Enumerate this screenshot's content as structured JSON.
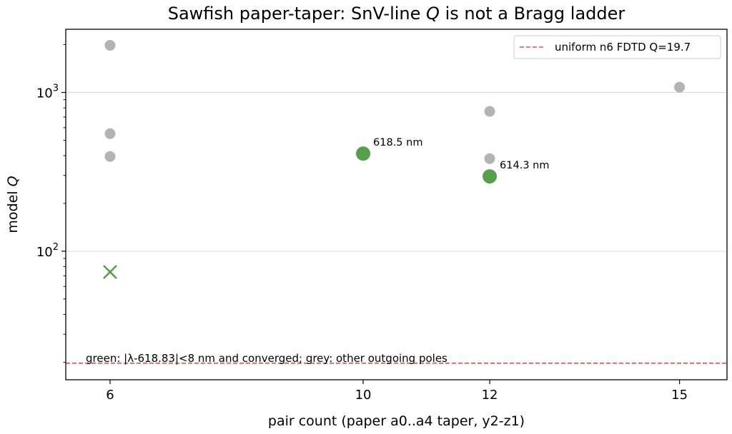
{
  "chart_data": {
    "type": "scatter",
    "title_parts": [
      "Sawfish paper-taper: SnV-line ",
      "Q",
      " is not a Bragg ladder"
    ],
    "xlabel": "pair count (paper a0..a4 taper, y2-z1)",
    "ylabel_parts": [
      "model ",
      "Q"
    ],
    "xlim": [
      5.3,
      15.75
    ],
    "ylim": [
      15.5,
      2500
    ],
    "yscale": "log",
    "grid": "horizontal major",
    "x_ticks": [
      {
        "value": 6,
        "label": "6"
      },
      {
        "value": 10,
        "label": "10"
      },
      {
        "value": 12,
        "label": "12"
      },
      {
        "value": 15,
        "label": "15"
      }
    ],
    "y_ticks": [
      {
        "value": 100,
        "base": "10",
        "exp": "2"
      },
      {
        "value": 1000,
        "base": "10",
        "exp": "3"
      }
    ],
    "series": [
      {
        "color": "#b3b3b3",
        "marker": "circle",
        "points": [
          {
            "x": 6,
            "y": 1980
          },
          {
            "x": 6,
            "y": 550
          },
          {
            "x": 6,
            "y": 395
          },
          {
            "x": 12,
            "y": 760
          },
          {
            "x": 12,
            "y": 383
          },
          {
            "x": 15,
            "y": 1080
          }
        ]
      },
      {
        "color": "#55a04b",
        "marker": "circle",
        "points": [
          {
            "x": 10,
            "y": 412,
            "label": "618.5 nm"
          },
          {
            "x": 12,
            "y": 296,
            "label": "614.3 nm"
          }
        ]
      },
      {
        "color": "#55a04b",
        "marker": "x",
        "points": [
          {
            "x": 6,
            "y": 74
          }
        ]
      }
    ],
    "reference_line": {
      "y": 19.7,
      "color": "#e05050",
      "style": "dashed",
      "legend": "uniform n6 FDTD Q=19.7"
    },
    "legend_position": "top-right",
    "note": "green: |λ-618.83|<8 nm and converged; grey: other outgoing poles"
  }
}
